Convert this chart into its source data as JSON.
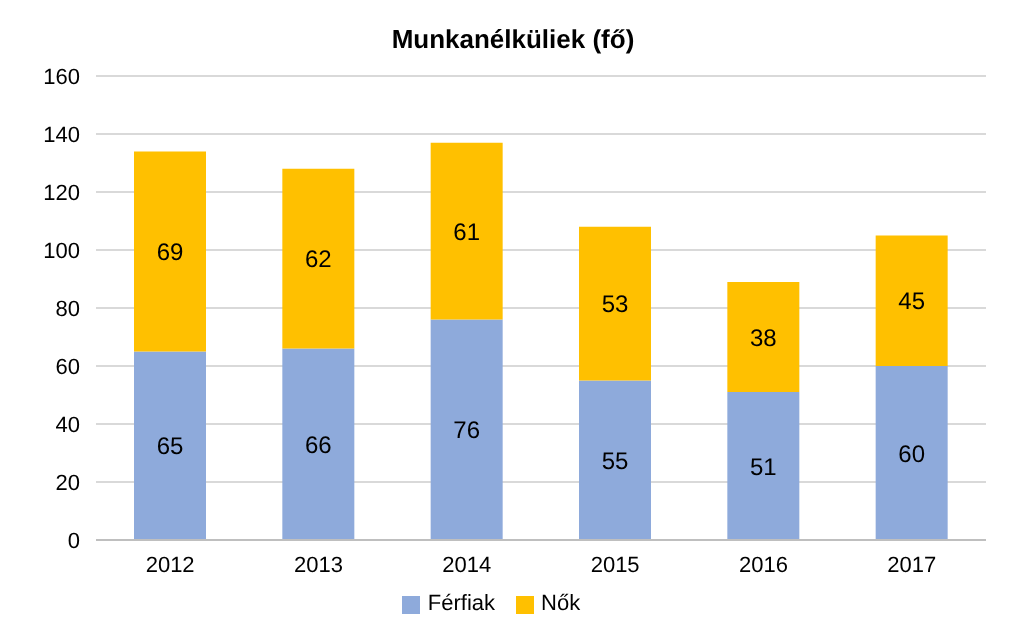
{
  "chart_data": {
    "type": "bar",
    "title": "Munkanélküliek (fő)",
    "stacked": true,
    "categories": [
      "2012",
      "2013",
      "2014",
      "2015",
      "2016",
      "2017"
    ],
    "series": [
      {
        "name": "Férfiak",
        "color": "#8eaadb",
        "values": [
          65,
          66,
          76,
          55,
          51,
          60
        ]
      },
      {
        "name": "Nők",
        "color": "#ffc000",
        "values": [
          69,
          62,
          61,
          53,
          38,
          45
        ]
      }
    ],
    "ylim": [
      0,
      160
    ],
    "yticks": [
      0,
      20,
      40,
      60,
      80,
      100,
      120,
      140,
      160
    ],
    "grid": "y",
    "legend": "bottom",
    "data_labels": true
  }
}
